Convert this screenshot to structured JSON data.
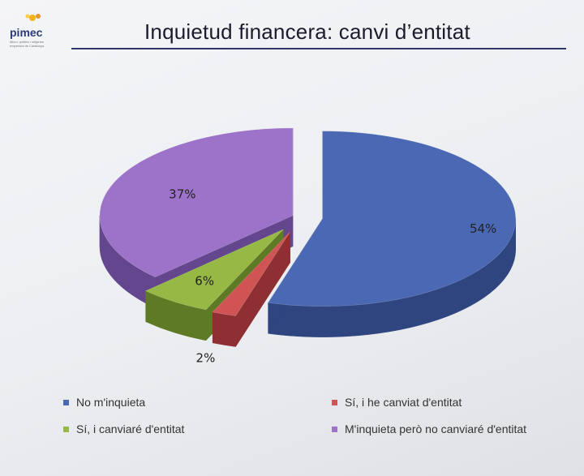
{
  "title": "Inquietud financera: canvi d’entitat",
  "logo": {
    "name": "pimec",
    "tagline": "Micro, petites i mitjanes empreses de Catalunya"
  },
  "chart_data": {
    "type": "pie",
    "title": "Inquietud financera: canvi d’entitat",
    "legend_position": "bottom",
    "exploded": true,
    "three_d": true,
    "slices": [
      {
        "label": "No m'inquieta",
        "value": 54,
        "display": "54%",
        "color": "#4a68b3",
        "side": "#2e4580"
      },
      {
        "label": "Sí, i he canviat d'entitat",
        "value": 2,
        "display": "2%",
        "color": "#d05454",
        "side": "#8e2f33"
      },
      {
        "label": "Sí, i canviaré d'entitat",
        "value": 6,
        "display": "6%",
        "color": "#96b845",
        "side": "#5e7a25"
      },
      {
        "label": "M'inquieta però no canviaré d'entitat",
        "value": 37,
        "display": "37%",
        "color": "#9c73c9",
        "side": "#64468e"
      }
    ]
  }
}
